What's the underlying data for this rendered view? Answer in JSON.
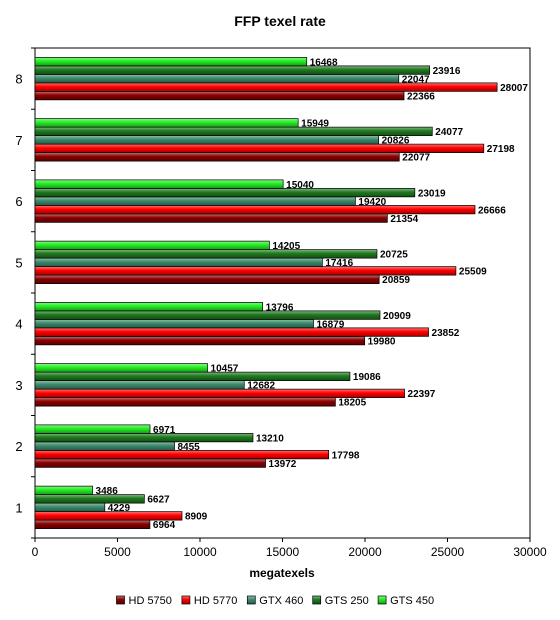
{
  "chart_data": {
    "type": "bar",
    "orientation": "horizontal",
    "title": "FFP texel rate",
    "xlabel": "megatexels",
    "ylabel": "",
    "xlim": [
      0,
      30000
    ],
    "x_ticks": [
      0,
      5000,
      10000,
      15000,
      20000,
      25000,
      30000
    ],
    "categories": [
      "1",
      "2",
      "3",
      "4",
      "5",
      "6",
      "7",
      "8"
    ],
    "grid": false,
    "legend_position": "bottom",
    "series": [
      {
        "name": "HD 5750",
        "color": "#8b0000",
        "values": [
          6964,
          13972,
          18205,
          19980,
          20859,
          21354,
          22077,
          22366
        ]
      },
      {
        "name": "HD 5770",
        "color": "#ff0000",
        "values": [
          8909,
          17798,
          22397,
          23852,
          25509,
          26666,
          27198,
          28007
        ]
      },
      {
        "name": "GTX 460",
        "color": "#3a8a6a",
        "values": [
          4229,
          8455,
          12682,
          16879,
          17416,
          19420,
          20826,
          22047
        ]
      },
      {
        "name": "GTS 250",
        "color": "#1e7a1e",
        "values": [
          6627,
          13210,
          19086,
          20909,
          20725,
          23019,
          24077,
          23916
        ]
      },
      {
        "name": "GTS 450",
        "color": "#22ee22",
        "values": [
          3486,
          6971,
          10457,
          13796,
          14205,
          15040,
          15949,
          16468
        ]
      }
    ]
  }
}
